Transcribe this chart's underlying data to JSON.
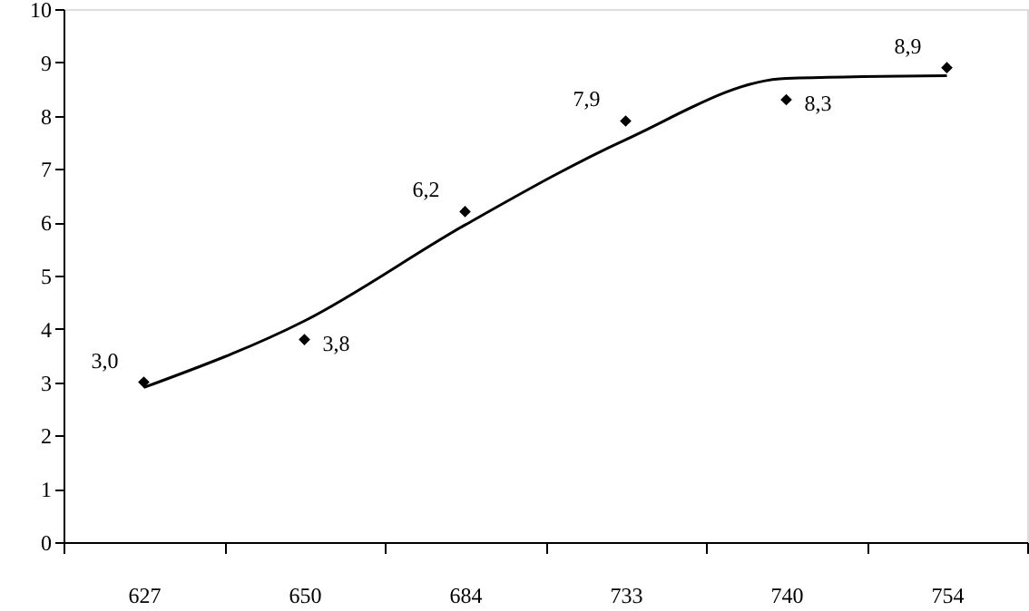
{
  "chart_data": {
    "type": "scatter",
    "categories": [
      "627",
      "650",
      "684",
      "733",
      "740",
      "754"
    ],
    "series": [
      {
        "color": "#000000",
        "marker": "diamond",
        "values": [
          3.0,
          3.8,
          6.2,
          7.9,
          8.3,
          8.9
        ],
        "value_labels": [
          "3,0",
          "3,8",
          "6,2",
          "7,9",
          "8,3",
          "8,9"
        ]
      },
      {
        "type": "line",
        "color": "#000000",
        "marker": "none",
        "line_style": "solid",
        "values": [
          2.9,
          4.15,
          5.95,
          7.55,
          8.7,
          8.75
        ]
      }
    ],
    "ylim": [
      0,
      10
    ],
    "yticks": [
      0,
      1,
      2,
      3,
      4,
      5,
      6,
      7,
      8,
      9,
      10
    ],
    "grid": false
  }
}
